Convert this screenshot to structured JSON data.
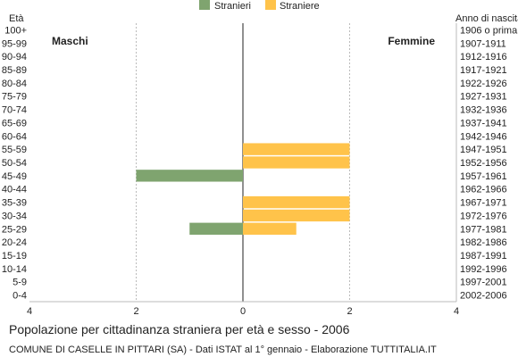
{
  "chart_data": {
    "type": "bar",
    "orientation": "horizontal-population-pyramid",
    "title": "Popolazione per cittadinanza straniera per età e sesso - 2006",
    "subtitle": "COMUNE DI CASELLE IN PITTARI (SA) - Dati ISTAT al 1° gennaio - Elaborazione TUTTITALIA.IT",
    "left_axis_label": "Età",
    "right_axis_label": "Anno di nascita",
    "left_side_label": "Maschi",
    "right_side_label": "Femmine",
    "legend_position": "top-center",
    "grid": true,
    "xlim": [
      -4,
      4
    ],
    "x_ticks": [
      "4",
      "2",
      "0",
      "2",
      "4"
    ],
    "categories": [
      "100+",
      "95-99",
      "90-94",
      "85-89",
      "80-84",
      "75-79",
      "70-74",
      "65-69",
      "60-64",
      "55-59",
      "50-54",
      "45-49",
      "40-44",
      "35-39",
      "30-34",
      "25-29",
      "20-24",
      "15-19",
      "10-14",
      "5-9",
      "0-4"
    ],
    "birth_years": [
      "1906 o prima",
      "1907-1911",
      "1912-1916",
      "1917-1921",
      "1922-1926",
      "1927-1931",
      "1932-1936",
      "1937-1941",
      "1942-1946",
      "1947-1951",
      "1952-1956",
      "1957-1961",
      "1962-1966",
      "1967-1971",
      "1972-1976",
      "1977-1981",
      "1982-1986",
      "1987-1991",
      "1992-1996",
      "1997-2001",
      "2002-2006"
    ],
    "series": [
      {
        "name": "Stranieri",
        "side": "left",
        "color": "#7fa46f",
        "values": [
          0,
          0,
          0,
          0,
          0,
          0,
          0,
          0,
          0,
          0,
          0,
          2,
          0,
          0,
          0,
          1,
          0,
          0,
          0,
          0,
          0
        ]
      },
      {
        "name": "Straniere",
        "side": "right",
        "color": "#ffc34a",
        "values": [
          0,
          0,
          0,
          0,
          0,
          0,
          0,
          0,
          0,
          2,
          2,
          0,
          0,
          2,
          2,
          1,
          0,
          0,
          0,
          0,
          0
        ]
      }
    ]
  }
}
